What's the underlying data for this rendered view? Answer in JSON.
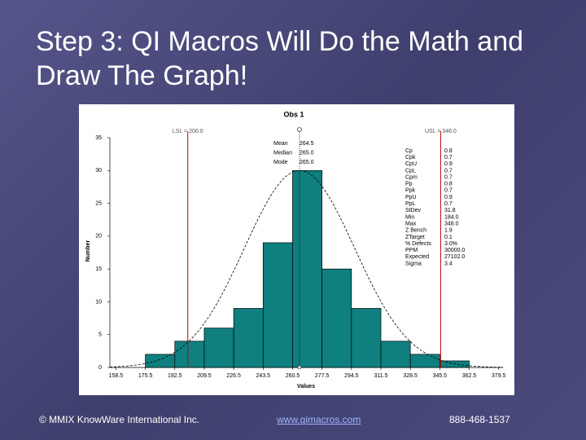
{
  "slide": {
    "title": "Step 3: QI Macros Will Do the Math and Draw The Graph!",
    "footer": [
      "© MMIX KnowWare International Inc.",
      "www.qimacros.com",
      "888-468-1537"
    ]
  },
  "chart_data": {
    "type": "histogram",
    "title": "Obs 1",
    "xlabel": "Values",
    "ylabel": "Number",
    "bins": [
      158.5,
      175.5,
      192.5,
      209.5,
      226.5,
      243.5,
      260.5,
      277.5,
      294.5,
      311.5,
      328.5,
      345.5,
      362.5,
      379.5
    ],
    "values": [
      0,
      2,
      4,
      6,
      9,
      19,
      30,
      15,
      9,
      4,
      2,
      1,
      0
    ],
    "color": "#0f7f7f",
    "xlim": [
      155,
      382
    ],
    "ylim": [
      0,
      35
    ],
    "xticks": [
      158.5,
      175.5,
      192.5,
      209.5,
      226.5,
      243.5,
      260.5,
      277.5,
      294.5,
      311.5,
      328.5,
      345.5,
      362.5,
      379.5
    ],
    "yticks": [
      0,
      5,
      10,
      15,
      20,
      25,
      30,
      35
    ],
    "spec_lines": [
      {
        "label": "LSL = 200.0",
        "value": 200
      },
      {
        "label": "USL = 346.0",
        "value": 346
      }
    ],
    "center_stats": [
      [
        "Mean",
        "264.5"
      ],
      [
        "Median",
        "265.0"
      ],
      [
        "Mode",
        "265.0"
      ]
    ],
    "stats": [
      [
        "Cp",
        "0.8"
      ],
      [
        "Cpk",
        "0.7"
      ],
      [
        "CpU",
        "0.9"
      ],
      [
        "CpL",
        "0.7"
      ],
      [
        "Cpm",
        "0.7"
      ],
      [
        "Pp",
        "0.8"
      ],
      [
        "Ppk",
        "0.7"
      ],
      [
        "PpU",
        "0.9"
      ],
      [
        "PpL",
        "0.7"
      ],
      [
        "StDev",
        "31.8"
      ],
      [
        "Min",
        "184.0"
      ],
      [
        "Max",
        "348.0"
      ],
      [
        "Z Bench",
        "1.9"
      ],
      [
        "ZTarget",
        "0.1"
      ],
      [
        "% Defects",
        "3.0%"
      ],
      [
        "PPM",
        "30000.0"
      ],
      [
        "Expected",
        "27102.0"
      ],
      [
        "Sigma",
        "3.4"
      ]
    ]
  }
}
